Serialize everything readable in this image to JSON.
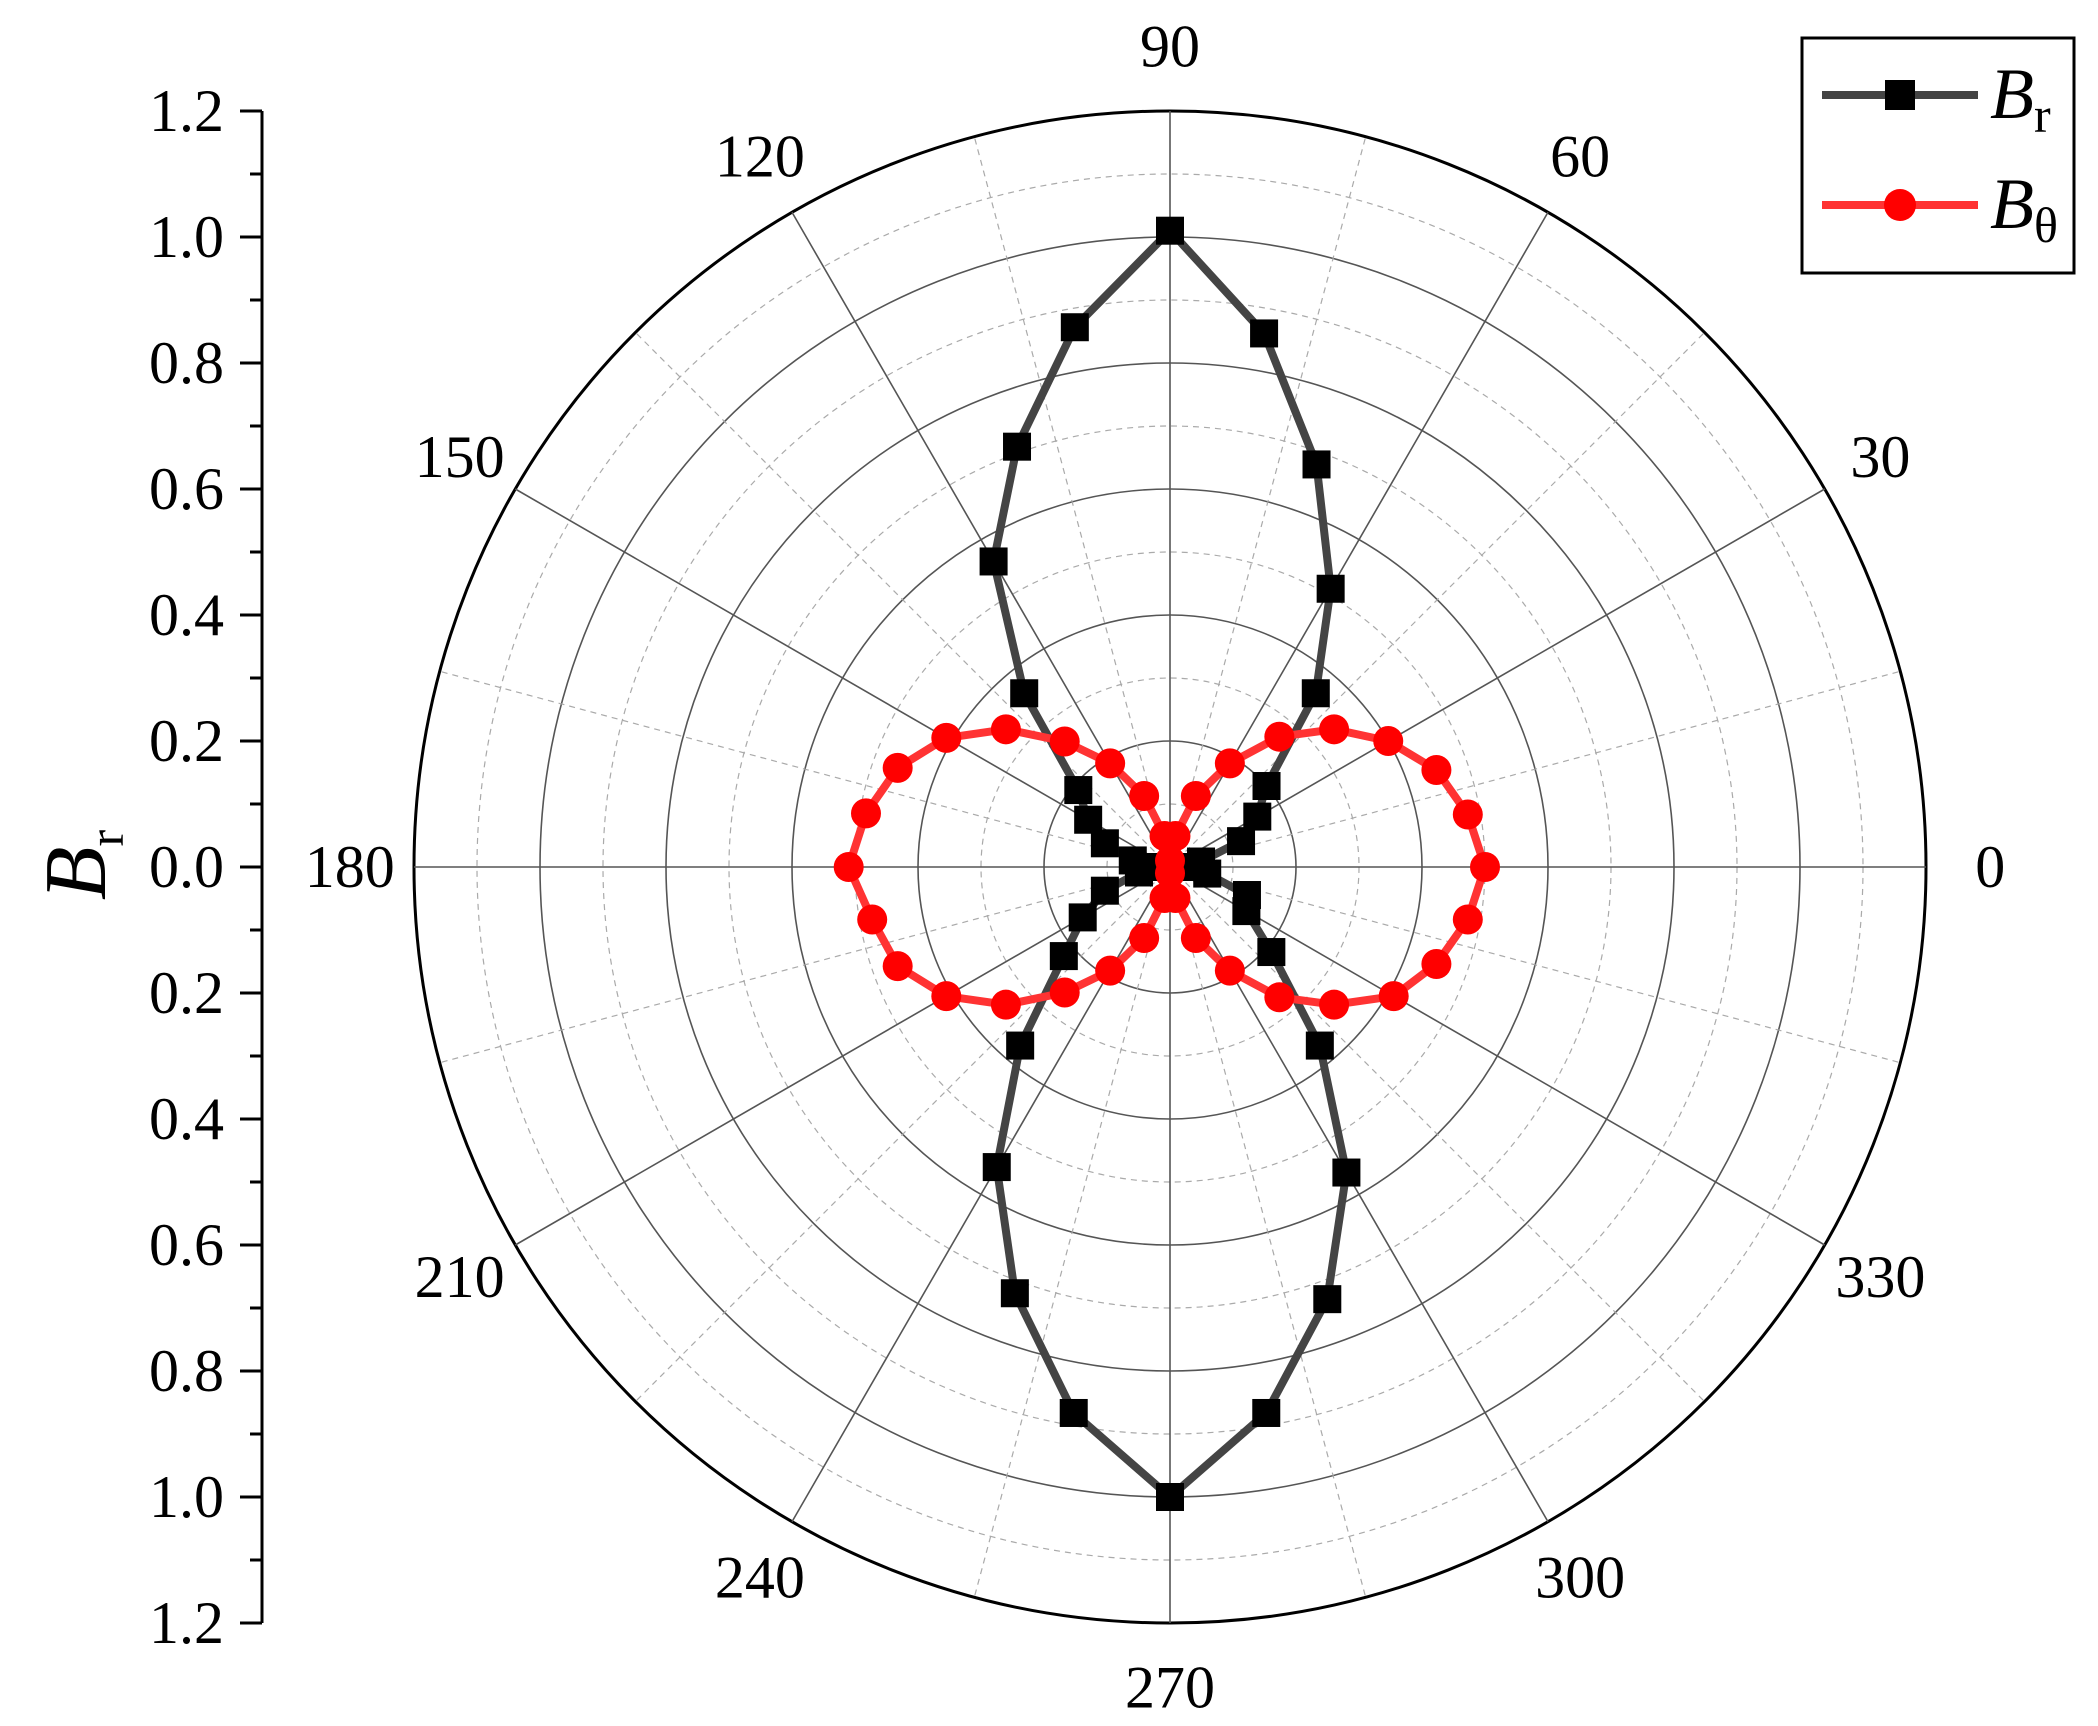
{
  "chart_data": {
    "type": "polar-line",
    "ylabel": "B",
    "ylabel_subscript": "r",
    "r_range": [
      0,
      1.2
    ],
    "r_ticks": [
      "0.0",
      "0.2",
      "0.4",
      "0.6",
      "0.8",
      "1.0",
      "1.2"
    ],
    "r_axis_labels_upper": [
      "1.2",
      "1.0",
      "0.8",
      "0.6",
      "0.4",
      "0.2",
      "0.0"
    ],
    "r_axis_labels_lower": [
      "0.2",
      "0.4",
      "0.6",
      "0.8",
      "1.0",
      "1.2"
    ],
    "angle_ticks": [
      "0",
      "30",
      "60",
      "90",
      "120",
      "150",
      "180",
      "210",
      "240",
      "270",
      "300",
      "330"
    ],
    "angle_values": [
      0,
      30,
      60,
      90,
      120,
      150,
      180,
      210,
      240,
      270,
      300,
      330
    ],
    "grid": true,
    "legend": {
      "position": "top-right"
    },
    "series": [
      {
        "name": "B",
        "name_subscript": "r",
        "color": "#444444",
        "marker_color": "#000000",
        "marker": "square",
        "theta_deg": [
          0,
          10,
          20,
          30,
          40,
          50,
          60,
          70,
          80,
          90,
          100,
          110,
          120,
          130,
          140,
          150,
          160,
          170,
          180,
          190,
          200,
          210,
          220,
          230,
          240,
          250,
          260,
          270,
          280,
          290,
          300,
          310,
          320,
          330,
          340,
          350
        ],
        "r": [
          0.02,
          0.05,
          0.12,
          0.16,
          0.2,
          0.36,
          0.51,
          0.68,
          0.86,
          1.01,
          0.87,
          0.71,
          0.56,
          0.36,
          0.19,
          0.15,
          0.11,
          0.06,
          0.02,
          0.05,
          0.11,
          0.16,
          0.22,
          0.37,
          0.55,
          0.72,
          0.88,
          1.0,
          0.88,
          0.73,
          0.56,
          0.37,
          0.21,
          0.14,
          0.13,
          0.06
        ]
      },
      {
        "name": "B",
        "name_subscript": "θ",
        "color": "#ff3333",
        "marker_color": "#ff0000",
        "marker": "circle",
        "theta_deg": [
          0,
          10,
          20,
          30,
          40,
          50,
          60,
          70,
          80,
          90,
          100,
          110,
          120,
          130,
          140,
          150,
          160,
          170,
          180,
          190,
          200,
          210,
          220,
          230,
          240,
          250,
          260,
          270,
          280,
          290,
          300,
          310,
          320,
          330,
          340,
          350
        ],
        "r": [
          0.5,
          0.48,
          0.45,
          0.4,
          0.34,
          0.27,
          0.19,
          0.12,
          0.05,
          0.01,
          0.05,
          0.12,
          0.19,
          0.26,
          0.34,
          0.41,
          0.46,
          0.49,
          0.51,
          0.48,
          0.46,
          0.41,
          0.34,
          0.26,
          0.19,
          0.12,
          0.05,
          0.01,
          0.05,
          0.12,
          0.19,
          0.27,
          0.34,
          0.41,
          0.45,
          0.48
        ]
      }
    ]
  }
}
